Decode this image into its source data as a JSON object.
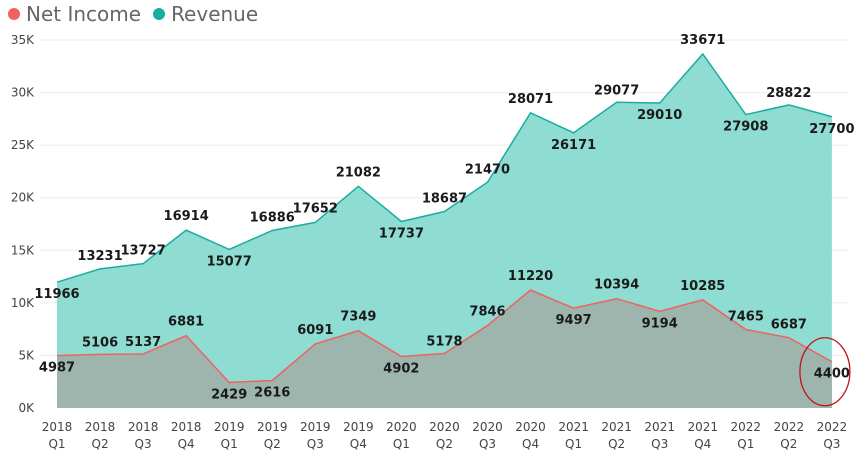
{
  "chart_data": {
    "type": "area",
    "categories": [
      [
        "2018",
        "Q1"
      ],
      [
        "2018",
        "Q2"
      ],
      [
        "2018",
        "Q3"
      ],
      [
        "2018",
        "Q4"
      ],
      [
        "2019",
        "Q1"
      ],
      [
        "2019",
        "Q2"
      ],
      [
        "2019",
        "Q3"
      ],
      [
        "2019",
        "Q4"
      ],
      [
        "2020",
        "Q1"
      ],
      [
        "2020",
        "Q2"
      ],
      [
        "2020",
        "Q3"
      ],
      [
        "2020",
        "Q4"
      ],
      [
        "2021",
        "Q1"
      ],
      [
        "2021",
        "Q2"
      ],
      [
        "2021",
        "Q3"
      ],
      [
        "2021",
        "Q4"
      ],
      [
        "2022",
        "Q1"
      ],
      [
        "2022",
        "Q2"
      ],
      [
        "2022",
        "Q3"
      ]
    ],
    "series": [
      {
        "name": "Revenue",
        "color": "#1AADA0",
        "fill": "#8FDCD2",
        "values": [
          11966,
          13231,
          13727,
          16914,
          15077,
          16886,
          17652,
          21082,
          17737,
          18687,
          21470,
          28071,
          26171,
          29077,
          29010,
          33671,
          27908,
          28822,
          27700
        ]
      },
      {
        "name": "Net Income",
        "color": "#F0625F",
        "fill": "#9DB5AC",
        "values": [
          4987,
          5106,
          5137,
          6881,
          2429,
          2616,
          6091,
          7349,
          4902,
          5178,
          7846,
          11220,
          9497,
          10394,
          9194,
          10285,
          7465,
          6687,
          4400
        ]
      }
    ],
    "yticks": [
      "0K",
      "5K",
      "10K",
      "15K",
      "20K",
      "25K",
      "30K",
      "35K"
    ],
    "ylim": [
      0,
      35000
    ],
    "grid": true,
    "legend_position": "top-left",
    "highlight": {
      "series": "Net Income",
      "category_index": 18,
      "shape": "ellipse",
      "color": "#C0141C"
    }
  }
}
